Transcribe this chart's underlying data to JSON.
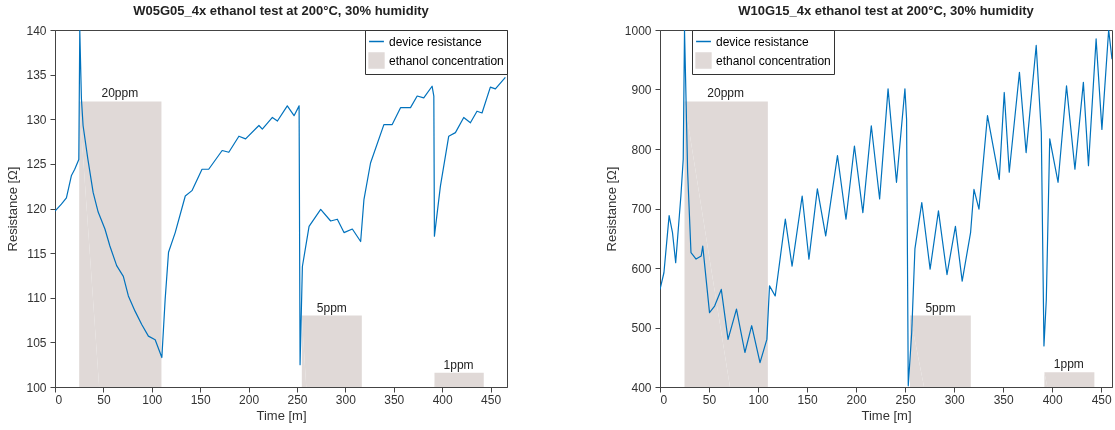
{
  "chart_data": [
    {
      "type": "line",
      "title": "W05G05_4x ethanol test at 200°C, 30% humidity",
      "xlabel": "Time [m]",
      "ylabel": "Resistance [Ω]",
      "xlim": [
        0,
        467
      ],
      "ylim": [
        100,
        140
      ],
      "xticks": [
        0,
        50,
        100,
        150,
        200,
        250,
        300,
        350,
        400,
        450
      ],
      "yticks": [
        100,
        105,
        110,
        115,
        120,
        125,
        130,
        135,
        140
      ],
      "grid": false,
      "legend": "top right",
      "series": [
        {
          "name": "ethanol concentration",
          "type": "area",
          "color": "#e0d9d7",
          "x": [
            25,
            110
          ],
          "values": [
            132,
            132
          ]
        },
        {
          "type": "area",
          "color": "#e0d9d7",
          "x": [
            255,
            317
          ],
          "values": [
            108,
            108
          ]
        },
        {
          "type": "area",
          "color": "#e0d9d7",
          "x": [
            392,
            443
          ],
          "values": [
            101.6,
            101.6
          ]
        },
        {
          "name": "device resistance",
          "color": "#0072bd",
          "x": [
            0,
            6.6,
            11.8,
            17,
            20.4,
            24.6,
            25.6,
            27.3,
            29,
            34,
            39.4,
            44.6,
            51.6,
            56.7,
            63.7,
            70.6,
            75.8,
            82.7,
            89.6,
            96.5,
            103.5,
            110.4,
            113.8,
            117.3,
            124.2,
            134.6,
            141.5,
            151.9,
            158.8,
            172.7,
            179.6,
            190,
            196.9,
            210.7,
            214.2,
            224.6,
            229.8,
            240,
            247,
            252.2,
            253.2,
            255.6,
            262.5,
            274.5,
            284.8,
            291.7,
            298.6,
            307.2,
            315.8,
            319.2,
            326,
            339.8,
            348.4,
            357,
            367.3,
            374.2,
            381,
            389.6,
            391.4,
            392,
            398.2,
            406.8,
            413.7,
            422.3,
            429.2,
            436,
            441.2,
            449.8,
            455,
            465.3
          ],
          "values": [
            119.7,
            120.5,
            121.2,
            123.7,
            124.4,
            125.5,
            140,
            132.3,
            129.3,
            125.5,
            121.8,
            119.6,
            117.7,
            115.8,
            113.6,
            112.4,
            110.2,
            108.5,
            107,
            105.7,
            105.3,
            103.3,
            109.8,
            115.1,
            117.3,
            121.4,
            122,
            124.4,
            124.4,
            126.5,
            126.3,
            128.1,
            127.8,
            129.3,
            128.9,
            130.2,
            129.8,
            131.5,
            130.4,
            131.5,
            102.5,
            113.5,
            118,
            119.9,
            118.6,
            118.8,
            117.3,
            117.7,
            116.3,
            121,
            125.1,
            129.4,
            129.4,
            131.3,
            131.3,
            132.6,
            132.4,
            133.7,
            132.6,
            116.9,
            122.5,
            128.1,
            128.5,
            130.2,
            129.6,
            130.9,
            130.7,
            133.6,
            133.4,
            134.7
          ]
        }
      ],
      "annotations": [
        {
          "text": "20ppm",
          "x": 67,
          "y": 132
        },
        {
          "text": "5ppm",
          "x": 286,
          "y": 108
        },
        {
          "text": "1ppm",
          "x": 417,
          "y": 101.6
        }
      ]
    },
    {
      "type": "line",
      "title": "W10G15_4x ethanol test at 200°C, 30% humidity",
      "xlabel": "Time [m]",
      "ylabel": "Resistance [Ω]",
      "xlim": [
        0,
        461
      ],
      "ylim": [
        400,
        1000
      ],
      "xticks": [
        0,
        50,
        100,
        150,
        200,
        250,
        300,
        350,
        400,
        450
      ],
      "yticks": [
        400,
        500,
        600,
        700,
        800,
        900,
        1000
      ],
      "grid": false,
      "legend": "top left",
      "series": [
        {
          "name": "ethanol concentration",
          "type": "area",
          "color": "#e0d9d7",
          "x": [
            25,
            110
          ],
          "values": [
            880,
            880
          ]
        },
        {
          "type": "area",
          "color": "#e0d9d7",
          "x": [
            255,
            317
          ],
          "values": [
            520,
            520
          ]
        },
        {
          "type": "area",
          "color": "#e0d9d7",
          "x": [
            392,
            443
          ],
          "values": [
            425,
            425
          ]
        },
        {
          "name": "device resistance",
          "color": "#0072bd",
          "x": [
            0,
            4,
            9.3,
            12.7,
            16,
            21.3,
            23.7,
            25,
            28.2,
            31.6,
            36.8,
            42,
            43.6,
            50.5,
            55.7,
            62.5,
            69.4,
            78,
            86.6,
            93.5,
            102,
            109,
            111.7,
            117.5,
            127.8,
            134.7,
            145,
            151.9,
            160.5,
            169,
            181,
            189.7,
            198.3,
            206.9,
            215.5,
            224,
            232.6,
            241.2,
            249.8,
            251.5,
            253.2,
            256.7,
            260,
            267,
            275.5,
            284,
            292.7,
            301.3,
            308.2,
            316.8,
            320.2,
            325.3,
            334,
            346,
            351.1,
            356.2,
            366.6,
            373.4,
            383.7,
            388.9,
            391.6,
            394,
            397.5,
            406,
            414.6,
            423.2,
            431.8,
            437,
            444.8,
            450.7,
            457.6,
            461
          ],
          "values": [
            564,
            592,
            688,
            660,
            609,
            721,
            783,
            1000,
            761,
            626,
            615,
            620,
            637,
            525,
            536,
            564,
            480,
            531,
            458,
            503,
            441,
            480,
            570,
            553,
            682,
            603,
            721,
            615,
            733,
            654,
            789,
            682,
            805,
            693,
            839,
            716,
            901,
            744,
            901,
            850,
            402,
            491,
            632,
            710,
            598,
            696,
            589,
            670,
            578,
            660,
            732,
            699,
            856,
            749,
            895,
            761,
            929,
            794,
            974,
            828,
            469,
            547,
            817,
            744,
            906,
            766,
            912,
            772,
            985,
            833,
            1000,
            951
          ]
        }
      ],
      "annotations": [
        {
          "text": "20ppm",
          "x": 67,
          "y": 880
        },
        {
          "text": "5ppm",
          "x": 286,
          "y": 520
        },
        {
          "text": "1ppm",
          "x": 417,
          "y": 425
        }
      ]
    }
  ]
}
